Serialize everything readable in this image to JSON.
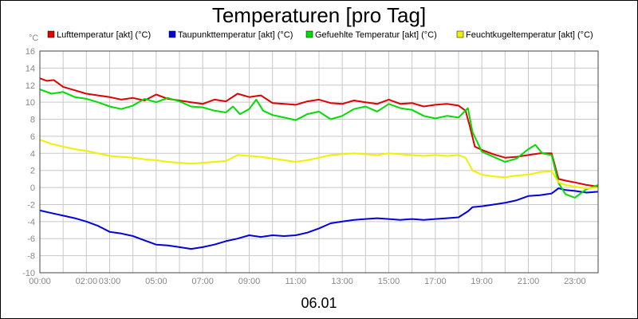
{
  "chart_data": {
    "type": "line",
    "title": "Temperaturen [pro Tag]",
    "y_unit": "°C",
    "date_label": "06.01",
    "ylim": [
      -10,
      16
    ],
    "y_ticks": [
      -10,
      -8,
      -6,
      -4,
      -2,
      0,
      2,
      4,
      6,
      8,
      10,
      12,
      14,
      16
    ],
    "xlim": [
      "00:00",
      "24:00"
    ],
    "x_tick_labels": [
      {
        "hour": 0,
        "label": "00:00"
      },
      {
        "hour": 2,
        "label": "02:00"
      },
      {
        "hour": 3,
        "label": "03:00"
      },
      {
        "hour": 5,
        "label": "05:00"
      },
      {
        "hour": 7,
        "label": "07:00"
      },
      {
        "hour": 9,
        "label": "09:00"
      },
      {
        "hour": 11,
        "label": "11:00"
      },
      {
        "hour": 13,
        "label": "13:00"
      },
      {
        "hour": 15,
        "label": "15:00"
      },
      {
        "hour": 17,
        "label": "17:00"
      },
      {
        "hour": 19,
        "label": "19:00"
      },
      {
        "hour": 21,
        "label": "21:00"
      },
      {
        "hour": 23,
        "label": "23:00"
      }
    ],
    "grid": true,
    "legend_position": "top",
    "series": [
      {
        "name": "Lufttemperatur [akt] (°C)",
        "color": "#e00000",
        "points": [
          [
            0,
            12.8
          ],
          [
            0.3,
            12.5
          ],
          [
            0.6,
            12.6
          ],
          [
            1,
            11.8
          ],
          [
            1.5,
            11.4
          ],
          [
            2,
            11.0
          ],
          [
            2.5,
            10.8
          ],
          [
            3,
            10.6
          ],
          [
            3.5,
            10.3
          ],
          [
            4,
            10.5
          ],
          [
            4.5,
            10.2
          ],
          [
            5,
            10.9
          ],
          [
            5.5,
            10.4
          ],
          [
            6,
            10.2
          ],
          [
            6.5,
            10.0
          ],
          [
            7,
            9.8
          ],
          [
            7.5,
            10.3
          ],
          [
            8,
            10.1
          ],
          [
            8.5,
            11.0
          ],
          [
            9,
            10.6
          ],
          [
            9.5,
            10.8
          ],
          [
            10,
            9.9
          ],
          [
            10.5,
            9.8
          ],
          [
            11,
            9.7
          ],
          [
            11.5,
            10.1
          ],
          [
            12,
            10.3
          ],
          [
            12.5,
            9.9
          ],
          [
            13,
            9.8
          ],
          [
            13.5,
            10.2
          ],
          [
            14,
            10.0
          ],
          [
            14.5,
            9.8
          ],
          [
            15,
            10.3
          ],
          [
            15.5,
            9.8
          ],
          [
            16,
            9.9
          ],
          [
            16.5,
            9.5
          ],
          [
            17,
            9.7
          ],
          [
            17.5,
            9.8
          ],
          [
            18,
            9.6
          ],
          [
            18.3,
            9.0
          ],
          [
            18.5,
            7.0
          ],
          [
            18.7,
            4.8
          ],
          [
            19,
            4.4
          ],
          [
            19.5,
            3.9
          ],
          [
            20,
            3.5
          ],
          [
            20.5,
            3.6
          ],
          [
            21,
            3.8
          ],
          [
            21.5,
            4.0
          ],
          [
            22,
            4.0
          ],
          [
            22.3,
            1.0
          ],
          [
            22.6,
            0.8
          ],
          [
            23,
            0.6
          ],
          [
            23.5,
            0.3
          ],
          [
            24,
            0.1
          ]
        ]
      },
      {
        "name": "Taupunkttemperatur [akt] (°C)",
        "color": "#0000e0",
        "points": [
          [
            0,
            -2.7
          ],
          [
            0.5,
            -3.0
          ],
          [
            1,
            -3.3
          ],
          [
            1.5,
            -3.6
          ],
          [
            2,
            -4.0
          ],
          [
            2.5,
            -4.5
          ],
          [
            3,
            -5.2
          ],
          [
            3.5,
            -5.4
          ],
          [
            4,
            -5.7
          ],
          [
            4.5,
            -6.2
          ],
          [
            5,
            -6.7
          ],
          [
            5.5,
            -6.8
          ],
          [
            6,
            -7.0
          ],
          [
            6.5,
            -7.2
          ],
          [
            7,
            -7.0
          ],
          [
            7.5,
            -6.7
          ],
          [
            8,
            -6.3
          ],
          [
            8.5,
            -6.0
          ],
          [
            9,
            -5.6
          ],
          [
            9.5,
            -5.8
          ],
          [
            10,
            -5.6
          ],
          [
            10.5,
            -5.7
          ],
          [
            11,
            -5.6
          ],
          [
            11.5,
            -5.3
          ],
          [
            12,
            -4.8
          ],
          [
            12.5,
            -4.2
          ],
          [
            13,
            -4.0
          ],
          [
            13.5,
            -3.8
          ],
          [
            14,
            -3.7
          ],
          [
            14.5,
            -3.6
          ],
          [
            15,
            -3.7
          ],
          [
            15.5,
            -3.8
          ],
          [
            16,
            -3.7
          ],
          [
            16.5,
            -3.8
          ],
          [
            17,
            -3.7
          ],
          [
            17.5,
            -3.6
          ],
          [
            18,
            -3.5
          ],
          [
            18.4,
            -2.8
          ],
          [
            18.6,
            -2.3
          ],
          [
            19,
            -2.2
          ],
          [
            19.5,
            -2.0
          ],
          [
            20,
            -1.8
          ],
          [
            20.5,
            -1.5
          ],
          [
            21,
            -1.0
          ],
          [
            21.5,
            -0.9
          ],
          [
            22,
            -0.7
          ],
          [
            22.3,
            -0.1
          ],
          [
            22.6,
            -0.3
          ],
          [
            23,
            -0.4
          ],
          [
            23.5,
            -0.6
          ],
          [
            24,
            -0.5
          ]
        ]
      },
      {
        "name": "Gefuehlte Temperatur [akt] (°C)",
        "color": "#00dd00",
        "points": [
          [
            0,
            11.5
          ],
          [
            0.5,
            11.0
          ],
          [
            1,
            11.2
          ],
          [
            1.5,
            10.6
          ],
          [
            2,
            10.4
          ],
          [
            2.5,
            10.0
          ],
          [
            3,
            9.5
          ],
          [
            3.5,
            9.2
          ],
          [
            4,
            9.6
          ],
          [
            4.5,
            10.4
          ],
          [
            5,
            10.0
          ],
          [
            5.5,
            10.5
          ],
          [
            6,
            10.1
          ],
          [
            6.5,
            9.5
          ],
          [
            7,
            9.4
          ],
          [
            7.5,
            9.0
          ],
          [
            8,
            8.8
          ],
          [
            8.3,
            9.5
          ],
          [
            8.6,
            8.6
          ],
          [
            9,
            9.2
          ],
          [
            9.3,
            10.3
          ],
          [
            9.6,
            9.0
          ],
          [
            10,
            8.5
          ],
          [
            10.5,
            8.2
          ],
          [
            11,
            7.9
          ],
          [
            11.5,
            8.6
          ],
          [
            12,
            8.9
          ],
          [
            12.5,
            8.0
          ],
          [
            13,
            8.4
          ],
          [
            13.5,
            9.2
          ],
          [
            14,
            9.5
          ],
          [
            14.5,
            8.9
          ],
          [
            15,
            9.8
          ],
          [
            15.5,
            9.3
          ],
          [
            16,
            9.1
          ],
          [
            16.5,
            8.4
          ],
          [
            17,
            8.1
          ],
          [
            17.5,
            8.4
          ],
          [
            18,
            8.2
          ],
          [
            18.4,
            9.3
          ],
          [
            18.6,
            6.5
          ],
          [
            19,
            4.2
          ],
          [
            19.5,
            3.6
          ],
          [
            20,
            3.0
          ],
          [
            20.5,
            3.4
          ],
          [
            21,
            4.5
          ],
          [
            21.3,
            5.0
          ],
          [
            21.6,
            4.0
          ],
          [
            22,
            3.8
          ],
          [
            22.3,
            0.5
          ],
          [
            22.6,
            -0.8
          ],
          [
            23,
            -1.2
          ],
          [
            23.5,
            -0.2
          ],
          [
            24,
            0.3
          ]
        ]
      },
      {
        "name": "Feuchtkugeltemperatur [akt] (°C)",
        "color": "#f0f000",
        "points": [
          [
            0,
            5.6
          ],
          [
            0.5,
            5.1
          ],
          [
            1,
            4.8
          ],
          [
            1.5,
            4.5
          ],
          [
            2,
            4.3
          ],
          [
            2.5,
            4.0
          ],
          [
            3,
            3.7
          ],
          [
            3.5,
            3.6
          ],
          [
            4,
            3.5
          ],
          [
            4.5,
            3.3
          ],
          [
            5,
            3.2
          ],
          [
            5.5,
            3.0
          ],
          [
            6,
            2.9
          ],
          [
            6.5,
            2.8
          ],
          [
            7,
            2.9
          ],
          [
            7.5,
            3.0
          ],
          [
            8,
            3.1
          ],
          [
            8.5,
            3.8
          ],
          [
            9,
            3.7
          ],
          [
            9.5,
            3.6
          ],
          [
            10,
            3.4
          ],
          [
            10.5,
            3.2
          ],
          [
            11,
            3.0
          ],
          [
            11.5,
            3.2
          ],
          [
            12,
            3.5
          ],
          [
            12.5,
            3.8
          ],
          [
            13,
            3.9
          ],
          [
            13.5,
            4.0
          ],
          [
            14,
            3.9
          ],
          [
            14.5,
            3.8
          ],
          [
            15,
            4.0
          ],
          [
            15.5,
            3.9
          ],
          [
            16,
            3.8
          ],
          [
            16.5,
            3.7
          ],
          [
            17,
            3.8
          ],
          [
            17.5,
            3.7
          ],
          [
            18,
            3.8
          ],
          [
            18.3,
            3.5
          ],
          [
            18.6,
            2.0
          ],
          [
            19,
            1.5
          ],
          [
            19.5,
            1.3
          ],
          [
            20,
            1.2
          ],
          [
            20.5,
            1.4
          ],
          [
            21,
            1.5
          ],
          [
            21.5,
            1.8
          ],
          [
            22,
            1.9
          ],
          [
            22.3,
            0.6
          ],
          [
            22.6,
            0.3
          ],
          [
            23,
            0.1
          ],
          [
            23.5,
            -0.1
          ],
          [
            24,
            0.0
          ]
        ]
      }
    ]
  }
}
